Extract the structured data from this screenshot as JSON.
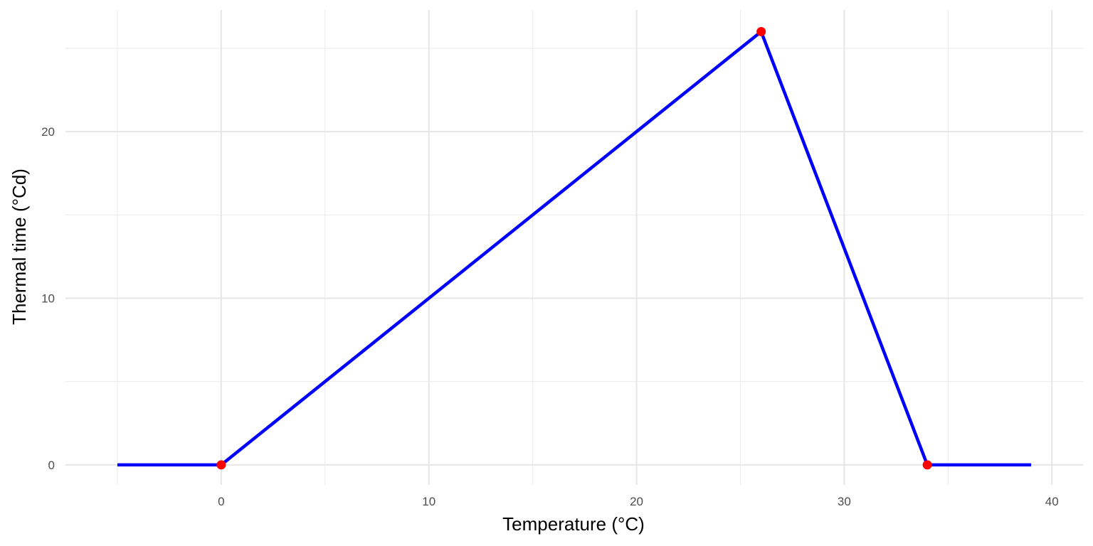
{
  "chart_data": {
    "type": "line",
    "title": "",
    "xlabel": "Temperature (°C)",
    "ylabel": "Thermal time (°Cd)",
    "xlim": [
      -7.5,
      41.5
    ],
    "ylim": [
      -1.2,
      27.3
    ],
    "x_ticks": [
      0,
      10,
      20,
      30,
      40
    ],
    "x_tick_labels": [
      "0",
      "10",
      "20",
      "30",
      "40"
    ],
    "y_ticks": [
      0,
      10,
      20
    ],
    "y_tick_labels": [
      "0",
      "10",
      "20"
    ],
    "x_minor_ticks": [
      -5,
      5,
      15,
      25,
      35
    ],
    "y_minor_ticks": [
      5,
      15,
      25
    ],
    "grid": true,
    "series": [
      {
        "line_color": "#0000ff",
        "x": [
          -5,
          0,
          26,
          34,
          39
        ],
        "y": [
          0,
          0,
          26,
          0,
          0
        ]
      }
    ],
    "points": {
      "color": "#ff0000",
      "x": [
        0,
        26,
        34
      ],
      "y": [
        0,
        26,
        0
      ]
    }
  }
}
